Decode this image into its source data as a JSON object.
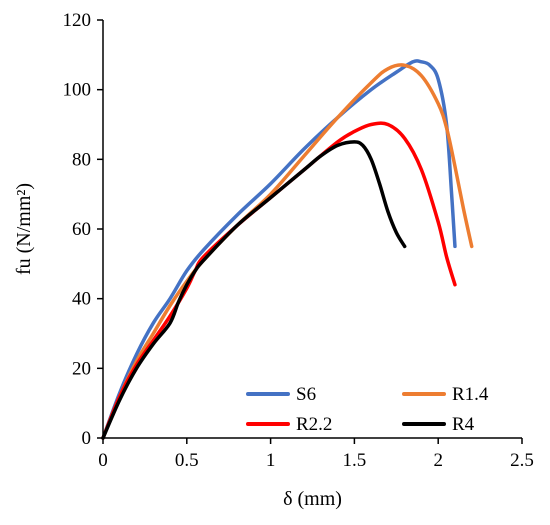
{
  "chart_data": {
    "type": "line",
    "xlabel": "δ (mm)",
    "ylabel": "fu (N/mm²)",
    "xlim": [
      0,
      2.5
    ],
    "ylim": [
      0,
      120
    ],
    "xticks": [
      0,
      0.5,
      1,
      1.5,
      2,
      2.5
    ],
    "yticks": [
      0,
      20,
      40,
      60,
      80,
      100,
      120
    ],
    "xtick_labels": [
      "0",
      "0.5",
      "1",
      "1.5",
      "2",
      "2.5"
    ],
    "ytick_labels": [
      "0",
      "20",
      "40",
      "60",
      "80",
      "100",
      "120"
    ],
    "grid": false,
    "legend_position": "bottom-right",
    "series": [
      {
        "name": "S6",
        "color": "#4472C4",
        "x": [
          0,
          0.1,
          0.2,
          0.3,
          0.4,
          0.5,
          0.6,
          0.8,
          1.0,
          1.2,
          1.4,
          1.6,
          1.75,
          1.85,
          1.9,
          1.95,
          2.0,
          2.05,
          2.08,
          2.1
        ],
        "y": [
          0,
          13,
          24,
          33,
          40,
          48,
          54,
          64,
          73,
          83,
          92,
          100,
          105,
          108,
          108,
          107,
          103,
          90,
          70,
          55
        ]
      },
      {
        "name": "R1.4",
        "color": "#ED7D31",
        "x": [
          0,
          0.1,
          0.2,
          0.3,
          0.4,
          0.5,
          0.6,
          0.8,
          1.0,
          1.2,
          1.4,
          1.6,
          1.7,
          1.8,
          1.9,
          2.0,
          2.05,
          2.1,
          2.15,
          2.2
        ],
        "y": [
          0,
          12,
          22,
          30,
          38,
          45,
          51,
          61,
          70,
          81,
          92,
          102,
          106,
          107,
          104,
          96,
          89,
          78,
          66,
          55
        ]
      },
      {
        "name": "R2.2",
        "color": "#FF0000",
        "x": [
          0,
          0.1,
          0.2,
          0.3,
          0.4,
          0.5,
          0.55,
          0.6,
          0.8,
          1.0,
          1.2,
          1.4,
          1.5,
          1.6,
          1.7,
          1.8,
          1.9,
          2.0,
          2.05,
          2.1
        ],
        "y": [
          0,
          12,
          21,
          28,
          35,
          43,
          48,
          52,
          61,
          69,
          77,
          85,
          88,
          90,
          90,
          86,
          77,
          62,
          52,
          44
        ]
      },
      {
        "name": "R4",
        "color": "#000000",
        "x": [
          0,
          0.1,
          0.2,
          0.3,
          0.4,
          0.45,
          0.5,
          0.55,
          0.6,
          0.8,
          1.0,
          1.2,
          1.3,
          1.4,
          1.5,
          1.55,
          1.6,
          1.65,
          1.7,
          1.75,
          1.8
        ],
        "y": [
          0,
          11,
          20,
          27,
          33,
          39,
          44,
          48,
          51,
          61,
          69,
          77,
          81,
          84,
          85,
          84,
          80,
          73,
          65,
          59,
          55
        ]
      }
    ]
  }
}
